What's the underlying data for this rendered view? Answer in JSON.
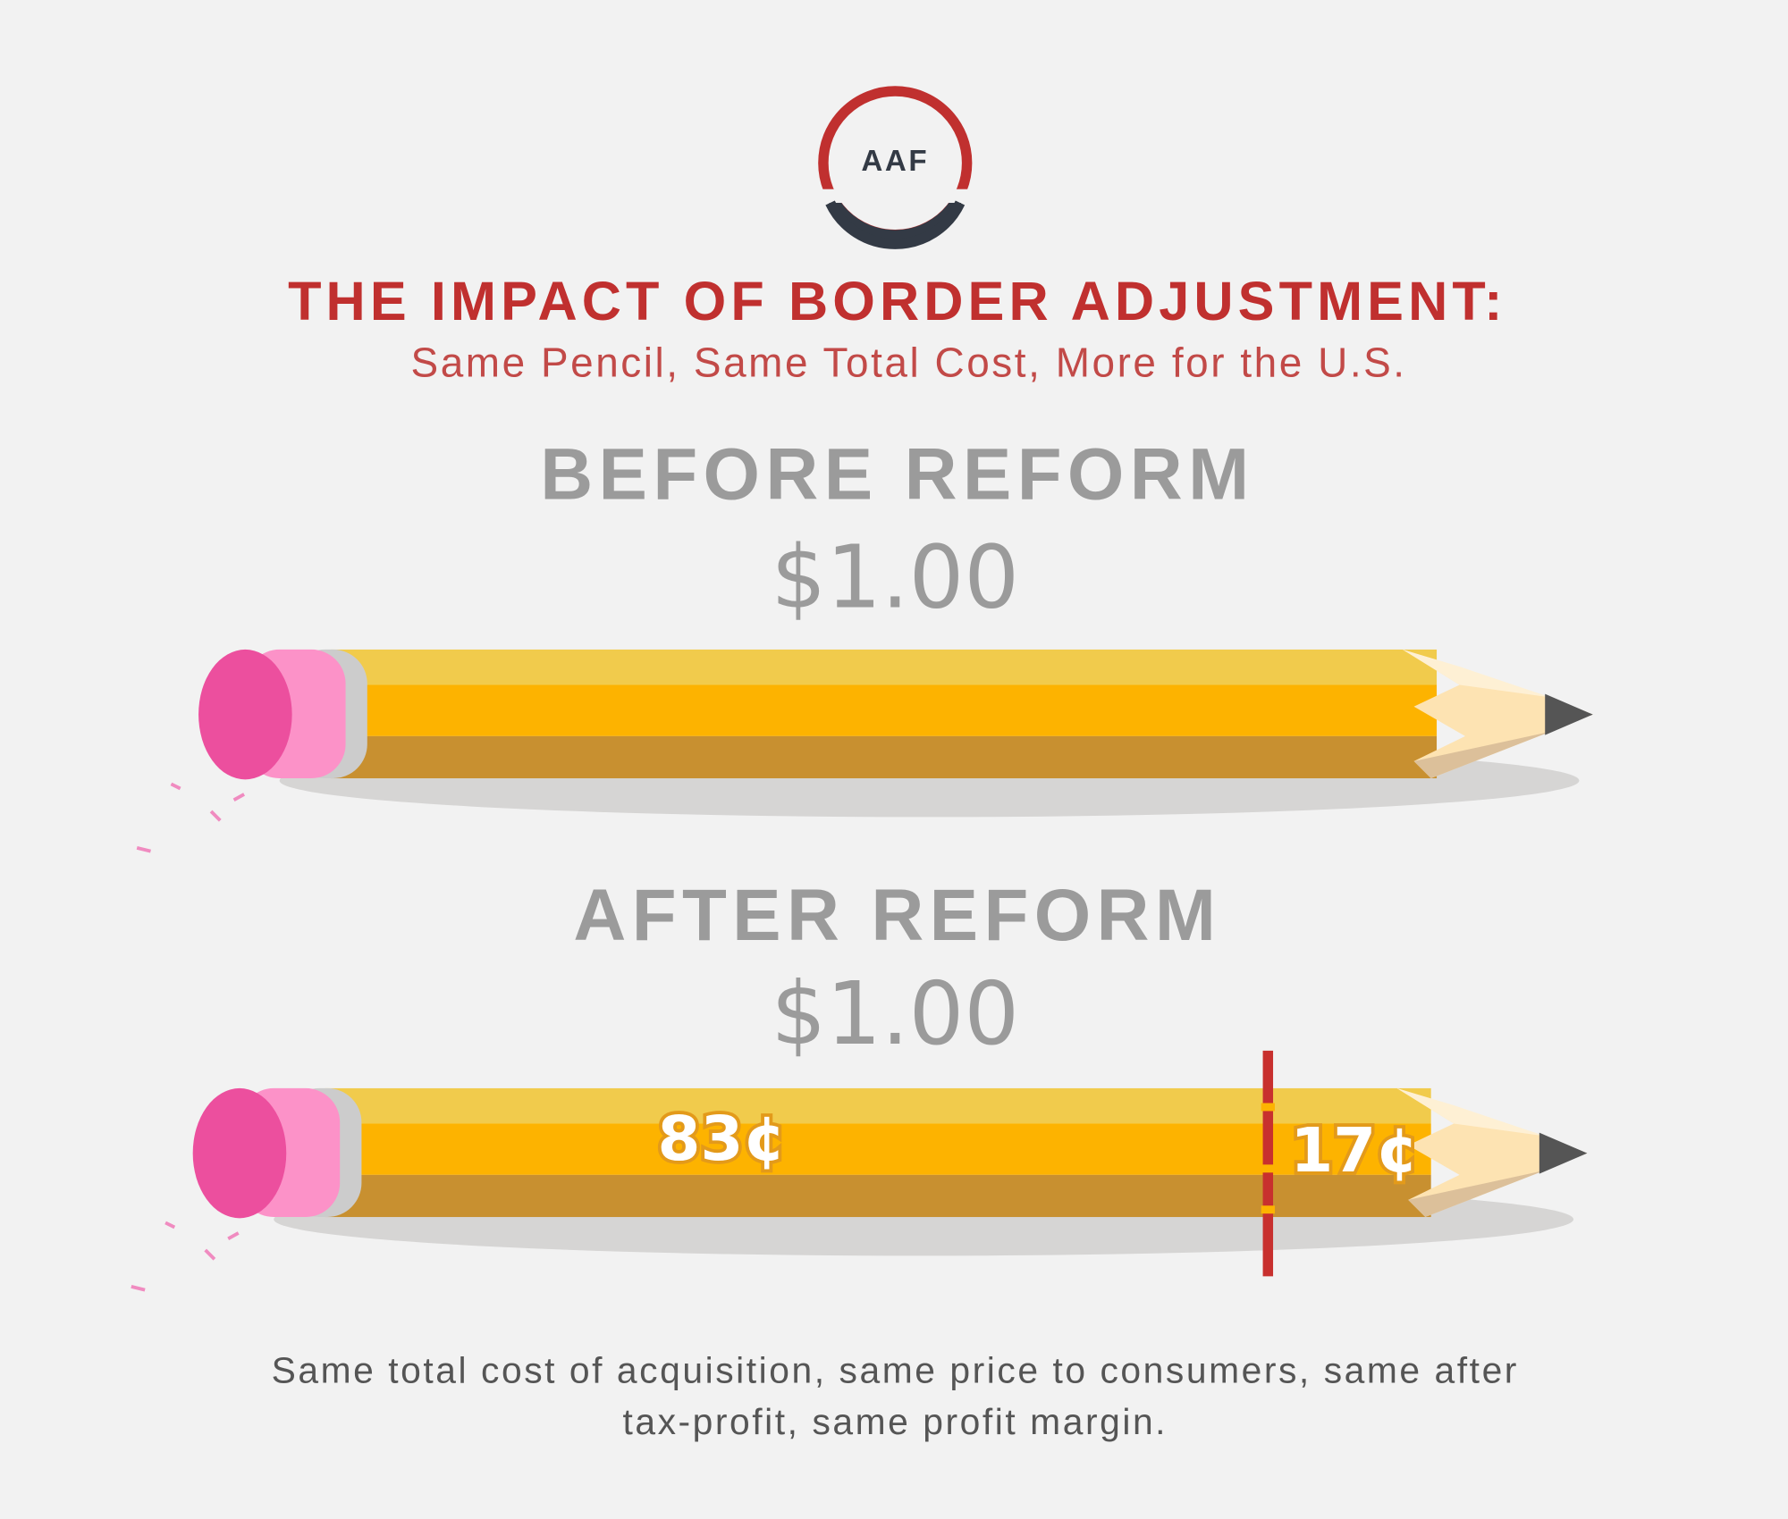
{
  "logo": {
    "text": "AAF"
  },
  "header": {
    "title": "THE IMPACT OF BORDER ADJUSTMENT:",
    "subtitle": "Same Pencil, Same Total Cost, More for the U.S."
  },
  "sections": [
    {
      "heading": "BEFORE REFORM",
      "price": "$1.00"
    },
    {
      "heading": "AFTER REFORM",
      "price": "$1.00",
      "segments": [
        "83¢",
        "17¢"
      ]
    }
  ],
  "footer": {
    "lines": [
      "Same total cost of acquisition, same price to consumers, same after",
      "tax-profit, same profit margin."
    ]
  }
}
